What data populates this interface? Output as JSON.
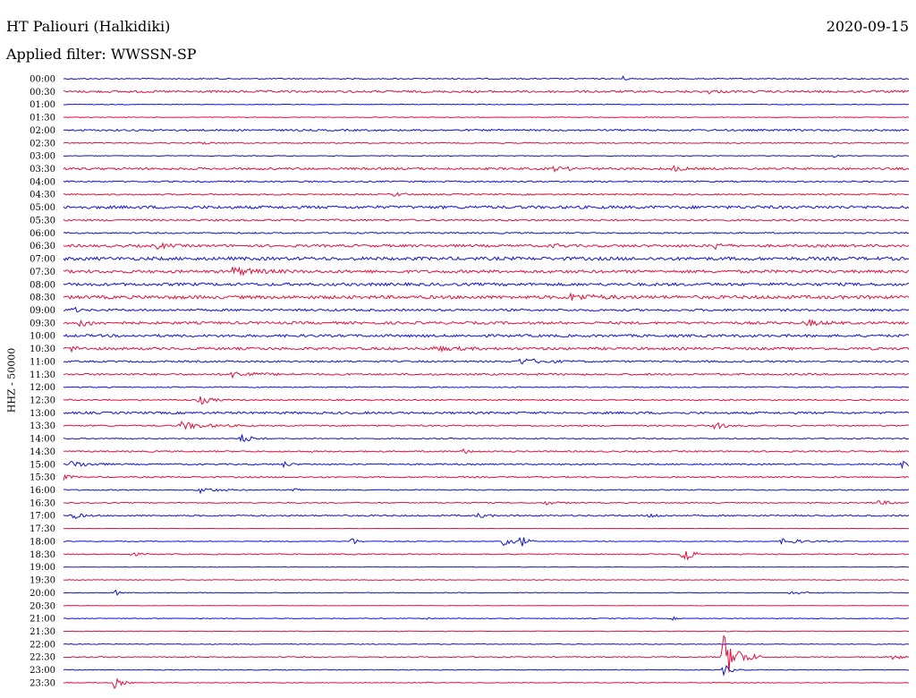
{
  "header": {
    "station": "HT Paliouri (Halkidiki)",
    "date": "2020-09-15",
    "filter": "Applied filter: WWSSN-SP"
  },
  "colors": {
    "even": "#1010d0",
    "odd": "#e0103c"
  },
  "chart_data": {
    "type": "line",
    "title": "HT Paliouri (Halkidiki)",
    "ylabel": "HHZ - 50000",
    "tick_labels": [
      "00:00",
      "00:30",
      "01:00",
      "01:30",
      "02:00",
      "02:30",
      "03:00",
      "03:30",
      "04:00",
      "04:30",
      "05:00",
      "05:30",
      "06:00",
      "06:30",
      "07:00",
      "07:30",
      "08:00",
      "08:30",
      "09:00",
      "09:30",
      "10:00",
      "10:30",
      "11:00",
      "11:30",
      "12:00",
      "12:30",
      "13:00",
      "13:30",
      "14:00",
      "14:30",
      "15:00",
      "15:30",
      "16:00",
      "16:30",
      "17:00",
      "17:30",
      "18:00",
      "18:30",
      "19:00",
      "19:30",
      "20:00",
      "20:30",
      "21:00",
      "21:30",
      "22:00",
      "22:30",
      "23:00",
      "23:30"
    ],
    "trace_noise": [
      0.6,
      1.2,
      0.4,
      0.4,
      1.0,
      0.6,
      0.4,
      1.2,
      0.8,
      0.8,
      1.6,
      1.0,
      0.8,
      1.4,
      1.8,
      1.6,
      1.6,
      1.8,
      1.2,
      1.4,
      1.4,
      1.4,
      1.0,
      1.0,
      0.6,
      0.8,
      1.2,
      0.8,
      0.6,
      0.8,
      0.8,
      0.8,
      0.6,
      0.6,
      0.8,
      0.2,
      0.4,
      0.6,
      0.2,
      0.4,
      0.4,
      0.2,
      0.4,
      0.4,
      0.4,
      0.6,
      0.4,
      0.4
    ],
    "events": [
      {
        "row": 0,
        "x": 0.66,
        "amp": 3,
        "w": 6
      },
      {
        "row": 1,
        "x": 0.76,
        "amp": 2,
        "w": 10
      },
      {
        "row": 5,
        "x": 0.16,
        "amp": 2,
        "w": 10
      },
      {
        "row": 6,
        "x": 0.91,
        "amp": 3,
        "w": 4
      },
      {
        "row": 7,
        "x": 0.58,
        "amp": 2,
        "w": 20
      },
      {
        "row": 7,
        "x": 0.72,
        "amp": 3,
        "w": 10
      },
      {
        "row": 9,
        "x": 0.39,
        "amp": 2,
        "w": 14
      },
      {
        "row": 13,
        "x": 0.11,
        "amp": 3,
        "w": 14
      },
      {
        "row": 13,
        "x": 0.58,
        "amp": 3,
        "w": 8
      },
      {
        "row": 13,
        "x": 0.77,
        "amp": 4,
        "w": 10
      },
      {
        "row": 15,
        "x": 0.2,
        "amp": 4,
        "w": 30
      },
      {
        "row": 17,
        "x": 0.6,
        "amp": 3,
        "w": 30
      },
      {
        "row": 18,
        "x": 0.01,
        "amp": 4,
        "w": 6
      },
      {
        "row": 19,
        "x": 0.02,
        "amp": 4,
        "w": 14
      },
      {
        "row": 19,
        "x": 0.88,
        "amp": 3,
        "w": 16
      },
      {
        "row": 21,
        "x": 0.01,
        "amp": 3,
        "w": 10
      },
      {
        "row": 21,
        "x": 0.44,
        "amp": 2,
        "w": 30
      },
      {
        "row": 22,
        "x": 0.54,
        "amp": 3,
        "w": 30
      },
      {
        "row": 23,
        "x": 0.2,
        "amp": 3,
        "w": 30
      },
      {
        "row": 25,
        "x": 0.16,
        "amp": 5,
        "w": 14
      },
      {
        "row": 27,
        "x": 0.14,
        "amp": 4,
        "w": 30
      },
      {
        "row": 27,
        "x": 0.77,
        "amp": 5,
        "w": 10
      },
      {
        "row": 28,
        "x": 0.21,
        "amp": 5,
        "w": 14
      },
      {
        "row": 29,
        "x": 0.47,
        "amp": 3,
        "w": 10
      },
      {
        "row": 30,
        "x": 0.01,
        "amp": 4,
        "w": 20
      },
      {
        "row": 30,
        "x": 0.26,
        "amp": 3,
        "w": 8
      },
      {
        "row": 30,
        "x": 0.99,
        "amp": 5,
        "w": 10
      },
      {
        "row": 31,
        "x": 0.0,
        "amp": 3,
        "w": 8
      },
      {
        "row": 32,
        "x": 0.16,
        "amp": 3,
        "w": 20
      },
      {
        "row": 32,
        "x": 0.27,
        "amp": 3,
        "w": 8
      },
      {
        "row": 33,
        "x": 0.57,
        "amp": 2,
        "w": 14
      },
      {
        "row": 33,
        "x": 0.96,
        "amp": 2,
        "w": 30
      },
      {
        "row": 34,
        "x": 0.01,
        "amp": 4,
        "w": 10
      },
      {
        "row": 34,
        "x": 0.49,
        "amp": 3,
        "w": 10
      },
      {
        "row": 34,
        "x": 0.69,
        "amp": 3,
        "w": 10
      },
      {
        "row": 36,
        "x": 0.34,
        "amp": 6,
        "w": 6
      },
      {
        "row": 36,
        "x": 0.52,
        "amp": 5,
        "w": 14
      },
      {
        "row": 36,
        "x": 0.54,
        "amp": 10,
        "w": 6
      },
      {
        "row": 36,
        "x": 0.85,
        "amp": 3,
        "w": 30
      },
      {
        "row": 37,
        "x": 0.73,
        "amp": 22,
        "w": 8
      },
      {
        "row": 37,
        "x": 0.08,
        "amp": 3,
        "w": 8
      },
      {
        "row": 40,
        "x": 0.06,
        "amp": 6,
        "w": 4
      },
      {
        "row": 40,
        "x": 0.86,
        "amp": 2,
        "w": 20
      },
      {
        "row": 42,
        "x": 0.43,
        "amp": 2,
        "w": 6
      },
      {
        "row": 42,
        "x": 0.72,
        "amp": 2,
        "w": 4
      },
      {
        "row": 45,
        "x": 0.78,
        "amp": 26,
        "w": 18
      },
      {
        "row": 45,
        "x": 0.98,
        "amp": 4,
        "w": 10
      },
      {
        "row": 46,
        "x": 0.78,
        "amp": 6,
        "w": 10
      },
      {
        "row": 47,
        "x": 0.06,
        "amp": 6,
        "w": 10
      },
      {
        "row": 47,
        "x": 0.43,
        "amp": 2,
        "w": 4
      }
    ]
  }
}
